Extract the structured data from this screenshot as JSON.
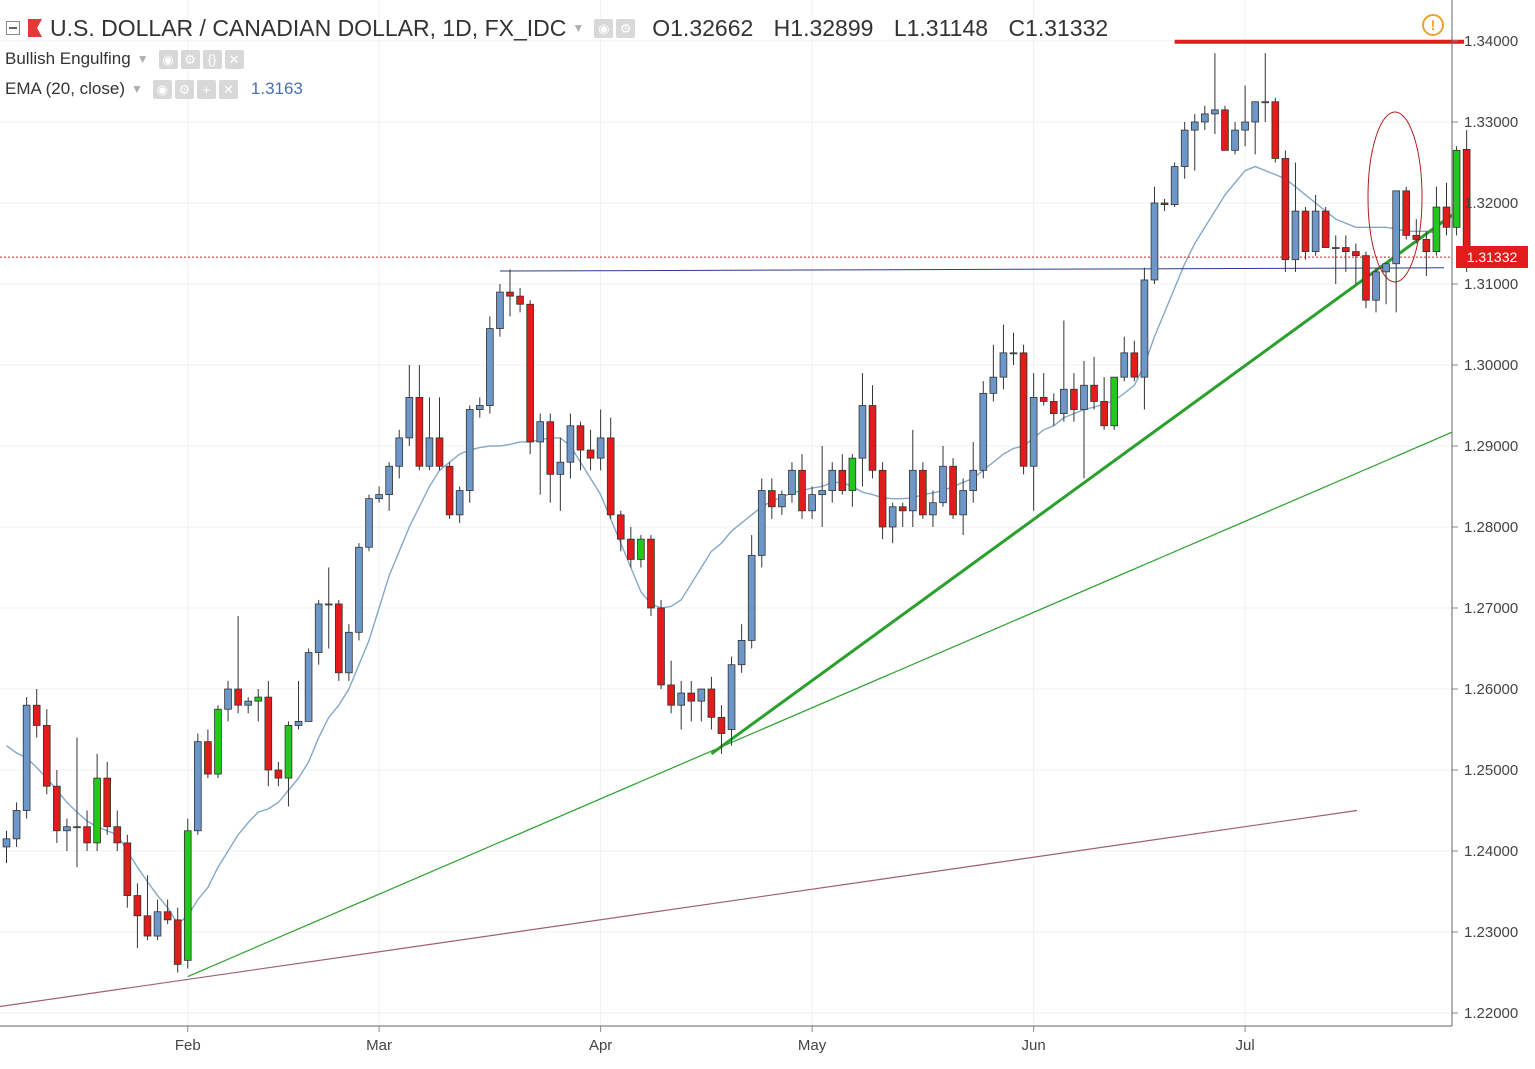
{
  "header": {
    "title": "U.S. DOLLAR / CANADIAN DOLLAR, 1D, FX_IDC",
    "open_label": "O1.32662",
    "high_label": "H1.32899",
    "low_label": "L1.31148",
    "close_label": "C1.31332"
  },
  "indicators": [
    {
      "name": "Bullish Engulfing",
      "value": ""
    },
    {
      "name": "EMA (20, close)",
      "value": "1.3163"
    }
  ],
  "last_price_label": "1.31332",
  "colors": {
    "up_body": "#6c97c8",
    "down_body": "#e21b1b",
    "pattern_green": "#22c81e",
    "ema_line": "#86a8c8",
    "trendline": "#2ca02c",
    "long_trendline": "#a06070",
    "resistance": "#e21b1b",
    "support": "#2b3a8f"
  },
  "chart_data": {
    "type": "candlestick",
    "title": "U.S. DOLLAR / CANADIAN DOLLAR, 1D, FX_IDC",
    "ylim": [
      1.22,
      1.34
    ],
    "y_ticks": [
      "1.22000",
      "1.23000",
      "1.24000",
      "1.25000",
      "1.26000",
      "1.27000",
      "1.28000",
      "1.29000",
      "1.30000",
      "1.31000",
      "1.32000",
      "1.33000",
      "1.34000"
    ],
    "x_labels": [
      {
        "label": "Feb",
        "index": 18
      },
      {
        "label": "Mar",
        "index": 37
      },
      {
        "label": "Apr",
        "index": 59
      },
      {
        "label": "May",
        "index": 80
      },
      {
        "label": "Jun",
        "index": 102
      },
      {
        "label": "Jul",
        "index": 123
      }
    ],
    "last_price": 1.31332,
    "candles": [
      {
        "o": 1.2405,
        "h": 1.2425,
        "l": 1.2385,
        "c": 1.2415
      },
      {
        "o": 1.2415,
        "h": 1.246,
        "l": 1.2405,
        "c": 1.245
      },
      {
        "o": 1.245,
        "h": 1.259,
        "l": 1.244,
        "c": 1.258
      },
      {
        "o": 1.258,
        "h": 1.26,
        "l": 1.254,
        "c": 1.2555
      },
      {
        "o": 1.2555,
        "h": 1.2575,
        "l": 1.247,
        "c": 1.248
      },
      {
        "o": 1.248,
        "h": 1.25,
        "l": 1.241,
        "c": 1.2425
      },
      {
        "o": 1.2425,
        "h": 1.244,
        "l": 1.24,
        "c": 1.243
      },
      {
        "o": 1.243,
        "h": 1.254,
        "l": 1.238,
        "c": 1.243
      },
      {
        "o": 1.243,
        "h": 1.245,
        "l": 1.24,
        "c": 1.241
      },
      {
        "o": 1.241,
        "h": 1.252,
        "l": 1.24,
        "c": 1.249,
        "g": 1
      },
      {
        "o": 1.249,
        "h": 1.251,
        "l": 1.242,
        "c": 1.243
      },
      {
        "o": 1.243,
        "h": 1.245,
        "l": 1.24,
        "c": 1.241
      },
      {
        "o": 1.241,
        "h": 1.242,
        "l": 1.233,
        "c": 1.2345
      },
      {
        "o": 1.2345,
        "h": 1.236,
        "l": 1.228,
        "c": 1.232
      },
      {
        "o": 1.232,
        "h": 1.237,
        "l": 1.229,
        "c": 1.2295
      },
      {
        "o": 1.2295,
        "h": 1.234,
        "l": 1.229,
        "c": 1.2325
      },
      {
        "o": 1.2325,
        "h": 1.234,
        "l": 1.231,
        "c": 1.2315
      },
      {
        "o": 1.2315,
        "h": 1.233,
        "l": 1.225,
        "c": 1.226
      },
      {
        "o": 1.2265,
        "h": 1.244,
        "l": 1.2255,
        "c": 1.2425,
        "g": 1
      },
      {
        "o": 1.2425,
        "h": 1.2545,
        "l": 1.242,
        "c": 1.2535
      },
      {
        "o": 1.2535,
        "h": 1.255,
        "l": 1.249,
        "c": 1.2495
      },
      {
        "o": 1.2495,
        "h": 1.258,
        "l": 1.249,
        "c": 1.2575,
        "g": 1
      },
      {
        "o": 1.2575,
        "h": 1.261,
        "l": 1.256,
        "c": 1.26
      },
      {
        "o": 1.26,
        "h": 1.269,
        "l": 1.257,
        "c": 1.258
      },
      {
        "o": 1.258,
        "h": 1.259,
        "l": 1.257,
        "c": 1.2585
      },
      {
        "o": 1.2585,
        "h": 1.26,
        "l": 1.256,
        "c": 1.259,
        "g": 1
      },
      {
        "o": 1.259,
        "h": 1.261,
        "l": 1.248,
        "c": 1.25
      },
      {
        "o": 1.25,
        "h": 1.251,
        "l": 1.248,
        "c": 1.249
      },
      {
        "o": 1.249,
        "h": 1.256,
        "l": 1.2455,
        "c": 1.2555,
        "g": 1
      },
      {
        "o": 1.2555,
        "h": 1.261,
        "l": 1.255,
        "c": 1.256
      },
      {
        "o": 1.256,
        "h": 1.265,
        "l": 1.256,
        "c": 1.2645
      },
      {
        "o": 1.2645,
        "h": 1.271,
        "l": 1.263,
        "c": 1.2705
      },
      {
        "o": 1.2705,
        "h": 1.275,
        "l": 1.265,
        "c": 1.2705
      },
      {
        "o": 1.2705,
        "h": 1.271,
        "l": 1.261,
        "c": 1.262
      },
      {
        "o": 1.262,
        "h": 1.268,
        "l": 1.261,
        "c": 1.267
      },
      {
        "o": 1.267,
        "h": 1.278,
        "l": 1.266,
        "c": 1.2775
      },
      {
        "o": 1.2775,
        "h": 1.284,
        "l": 1.277,
        "c": 1.2835
      },
      {
        "o": 1.2835,
        "h": 1.285,
        "l": 1.283,
        "c": 1.284
      },
      {
        "o": 1.284,
        "h": 1.288,
        "l": 1.282,
        "c": 1.2875
      },
      {
        "o": 1.2875,
        "h": 1.292,
        "l": 1.286,
        "c": 1.291
      },
      {
        "o": 1.291,
        "h": 1.3,
        "l": 1.29,
        "c": 1.296
      },
      {
        "o": 1.296,
        "h": 1.3,
        "l": 1.287,
        "c": 1.2875
      },
      {
        "o": 1.2875,
        "h": 1.296,
        "l": 1.287,
        "c": 1.291
      },
      {
        "o": 1.291,
        "h": 1.296,
        "l": 1.287,
        "c": 1.2875
      },
      {
        "o": 1.2875,
        "h": 1.288,
        "l": 1.281,
        "c": 1.2815
      },
      {
        "o": 1.2815,
        "h": 1.285,
        "l": 1.2805,
        "c": 1.2845
      },
      {
        "o": 1.2845,
        "h": 1.295,
        "l": 1.283,
        "c": 1.2945
      },
      {
        "o": 1.2945,
        "h": 1.296,
        "l": 1.2935,
        "c": 1.295
      },
      {
        "o": 1.295,
        "h": 1.306,
        "l": 1.294,
        "c": 1.3045
      },
      {
        "o": 1.3045,
        "h": 1.31,
        "l": 1.3035,
        "c": 1.309
      },
      {
        "o": 1.309,
        "h": 1.3118,
        "l": 1.306,
        "c": 1.3085
      },
      {
        "o": 1.3085,
        "h": 1.3095,
        "l": 1.3065,
        "c": 1.3075
      },
      {
        "o": 1.3075,
        "h": 1.308,
        "l": 1.289,
        "c": 1.2905
      },
      {
        "o": 1.2905,
        "h": 1.294,
        "l": 1.284,
        "c": 1.293
      },
      {
        "o": 1.293,
        "h": 1.294,
        "l": 1.283,
        "c": 1.2865
      },
      {
        "o": 1.2865,
        "h": 1.291,
        "l": 1.282,
        "c": 1.288
      },
      {
        "o": 1.288,
        "h": 1.294,
        "l": 1.286,
        "c": 1.2925
      },
      {
        "o": 1.2925,
        "h": 1.293,
        "l": 1.287,
        "c": 1.2895
      },
      {
        "o": 1.2895,
        "h": 1.292,
        "l": 1.287,
        "c": 1.2885
      },
      {
        "o": 1.2885,
        "h": 1.2945,
        "l": 1.287,
        "c": 1.291
      },
      {
        "o": 1.291,
        "h": 1.2935,
        "l": 1.281,
        "c": 1.2815
      },
      {
        "o": 1.2815,
        "h": 1.282,
        "l": 1.277,
        "c": 1.2785
      },
      {
        "o": 1.2785,
        "h": 1.28,
        "l": 1.275,
        "c": 1.276
      },
      {
        "o": 1.276,
        "h": 1.279,
        "l": 1.275,
        "c": 1.2785,
        "g": 1
      },
      {
        "o": 1.2785,
        "h": 1.279,
        "l": 1.269,
        "c": 1.27
      },
      {
        "o": 1.27,
        "h": 1.271,
        "l": 1.26,
        "c": 1.2605
      },
      {
        "o": 1.2605,
        "h": 1.2635,
        "l": 1.257,
        "c": 1.258
      },
      {
        "o": 1.258,
        "h": 1.261,
        "l": 1.255,
        "c": 1.2595
      },
      {
        "o": 1.2595,
        "h": 1.261,
        "l": 1.256,
        "c": 1.2585
      },
      {
        "o": 1.2585,
        "h": 1.26,
        "l": 1.256,
        "c": 1.26
      },
      {
        "o": 1.26,
        "h": 1.2615,
        "l": 1.255,
        "c": 1.2565
      },
      {
        "o": 1.2565,
        "h": 1.258,
        "l": 1.252,
        "c": 1.2545
      },
      {
        "o": 1.255,
        "h": 1.264,
        "l": 1.253,
        "c": 1.263
      },
      {
        "o": 1.263,
        "h": 1.268,
        "l": 1.262,
        "c": 1.266
      },
      {
        "o": 1.266,
        "h": 1.279,
        "l": 1.265,
        "c": 1.2765
      },
      {
        "o": 1.2765,
        "h": 1.286,
        "l": 1.275,
        "c": 1.2845
      },
      {
        "o": 1.2845,
        "h": 1.286,
        "l": 1.281,
        "c": 1.2825
      },
      {
        "o": 1.2825,
        "h": 1.2845,
        "l": 1.2815,
        "c": 1.284
      },
      {
        "o": 1.284,
        "h": 1.288,
        "l": 1.283,
        "c": 1.287
      },
      {
        "o": 1.287,
        "h": 1.289,
        "l": 1.281,
        "c": 1.282
      },
      {
        "o": 1.282,
        "h": 1.285,
        "l": 1.281,
        "c": 1.284
      },
      {
        "o": 1.284,
        "h": 1.29,
        "l": 1.28,
        "c": 1.2845
      },
      {
        "o": 1.2845,
        "h": 1.288,
        "l": 1.283,
        "c": 1.287
      },
      {
        "o": 1.287,
        "h": 1.289,
        "l": 1.284,
        "c": 1.2845
      },
      {
        "o": 1.2845,
        "h": 1.289,
        "l": 1.2825,
        "c": 1.2885,
        "g": 1
      },
      {
        "o": 1.2885,
        "h": 1.299,
        "l": 1.285,
        "c": 1.295
      },
      {
        "o": 1.295,
        "h": 1.2975,
        "l": 1.286,
        "c": 1.287
      },
      {
        "o": 1.287,
        "h": 1.288,
        "l": 1.2785,
        "c": 1.28
      },
      {
        "o": 1.28,
        "h": 1.283,
        "l": 1.278,
        "c": 1.2825
      },
      {
        "o": 1.2825,
        "h": 1.283,
        "l": 1.28,
        "c": 1.282
      },
      {
        "o": 1.282,
        "h": 1.292,
        "l": 1.28,
        "c": 1.287
      },
      {
        "o": 1.287,
        "h": 1.288,
        "l": 1.281,
        "c": 1.2815
      },
      {
        "o": 1.2815,
        "h": 1.2845,
        "l": 1.28,
        "c": 1.283
      },
      {
        "o": 1.283,
        "h": 1.29,
        "l": 1.2825,
        "c": 1.2875
      },
      {
        "o": 1.2875,
        "h": 1.2885,
        "l": 1.281,
        "c": 1.2815
      },
      {
        "o": 1.2815,
        "h": 1.286,
        "l": 1.279,
        "c": 1.2845
      },
      {
        "o": 1.2845,
        "h": 1.2905,
        "l": 1.283,
        "c": 1.287
      },
      {
        "o": 1.287,
        "h": 1.298,
        "l": 1.286,
        "c": 1.2965
      },
      {
        "o": 1.2965,
        "h": 1.3025,
        "l": 1.2955,
        "c": 1.2985
      },
      {
        "o": 1.2985,
        "h": 1.305,
        "l": 1.297,
        "c": 1.3015
      },
      {
        "o": 1.3015,
        "h": 1.304,
        "l": 1.3,
        "c": 1.3015
      },
      {
        "o": 1.3015,
        "h": 1.3025,
        "l": 1.2865,
        "c": 1.2875
      },
      {
        "o": 1.2875,
        "h": 1.299,
        "l": 1.282,
        "c": 1.296
      },
      {
        "o": 1.296,
        "h": 1.299,
        "l": 1.295,
        "c": 1.2955
      },
      {
        "o": 1.2955,
        "h": 1.2965,
        "l": 1.2925,
        "c": 1.294
      },
      {
        "o": 1.294,
        "h": 1.3055,
        "l": 1.293,
        "c": 1.297
      },
      {
        "o": 1.297,
        "h": 1.299,
        "l": 1.293,
        "c": 1.2945
      },
      {
        "o": 1.2945,
        "h": 1.3005,
        "l": 1.286,
        "c": 1.2975
      },
      {
        "o": 1.2975,
        "h": 1.301,
        "l": 1.2945,
        "c": 1.2955
      },
      {
        "o": 1.2955,
        "h": 1.2985,
        "l": 1.292,
        "c": 1.2925
      },
      {
        "o": 1.2925,
        "h": 1.2985,
        "l": 1.292,
        "c": 1.2985,
        "g": 1
      },
      {
        "o": 1.2985,
        "h": 1.3035,
        "l": 1.298,
        "c": 1.3015
      },
      {
        "o": 1.3015,
        "h": 1.303,
        "l": 1.298,
        "c": 1.2985
      },
      {
        "o": 1.2985,
        "h": 1.312,
        "l": 1.2945,
        "c": 1.3105
      },
      {
        "o": 1.3105,
        "h": 1.322,
        "l": 1.31,
        "c": 1.32
      },
      {
        "o": 1.32,
        "h": 1.3205,
        "l": 1.319,
        "c": 1.3198
      },
      {
        "o": 1.3198,
        "h": 1.325,
        "l": 1.3195,
        "c": 1.3245
      },
      {
        "o": 1.3245,
        "h": 1.33,
        "l": 1.323,
        "c": 1.329
      },
      {
        "o": 1.329,
        "h": 1.331,
        "l": 1.324,
        "c": 1.33
      },
      {
        "o": 1.33,
        "h": 1.332,
        "l": 1.329,
        "c": 1.331
      },
      {
        "o": 1.331,
        "h": 1.3385,
        "l": 1.3285,
        "c": 1.3315
      },
      {
        "o": 1.3315,
        "h": 1.332,
        "l": 1.3265,
        "c": 1.3265
      },
      {
        "o": 1.3265,
        "h": 1.33,
        "l": 1.326,
        "c": 1.329
      },
      {
        "o": 1.329,
        "h": 1.3345,
        "l": 1.327,
        "c": 1.33
      },
      {
        "o": 1.33,
        "h": 1.332,
        "l": 1.326,
        "c": 1.3325
      },
      {
        "o": 1.3325,
        "h": 1.3385,
        "l": 1.33,
        "c": 1.3325
      },
      {
        "o": 1.3325,
        "h": 1.333,
        "l": 1.325,
        "c": 1.3255
      },
      {
        "o": 1.3255,
        "h": 1.3265,
        "l": 1.3115,
        "c": 1.313
      },
      {
        "o": 1.313,
        "h": 1.325,
        "l": 1.3115,
        "c": 1.319
      },
      {
        "o": 1.319,
        "h": 1.3195,
        "l": 1.313,
        "c": 1.314
      },
      {
        "o": 1.314,
        "h": 1.321,
        "l": 1.3135,
        "c": 1.319
      },
      {
        "o": 1.319,
        "h": 1.3195,
        "l": 1.3145,
        "c": 1.3145
      },
      {
        "o": 1.3145,
        "h": 1.316,
        "l": 1.31,
        "c": 1.3145
      },
      {
        "o": 1.3145,
        "h": 1.316,
        "l": 1.3115,
        "c": 1.314
      },
      {
        "o": 1.314,
        "h": 1.315,
        "l": 1.31,
        "c": 1.3135
      },
      {
        "o": 1.3135,
        "h": 1.314,
        "l": 1.307,
        "c": 1.308
      },
      {
        "o": 1.308,
        "h": 1.312,
        "l": 1.3065,
        "c": 1.3115
      },
      {
        "o": 1.3115,
        "h": 1.3125,
        "l": 1.3075,
        "c": 1.3125
      },
      {
        "o": 1.3125,
        "h": 1.3215,
        "l": 1.3065,
        "c": 1.3215
      },
      {
        "o": 1.3215,
        "h": 1.322,
        "l": 1.3155,
        "c": 1.316
      },
      {
        "o": 1.316,
        "h": 1.318,
        "l": 1.315,
        "c": 1.3155
      },
      {
        "o": 1.3155,
        "h": 1.3165,
        "l": 1.311,
        "c": 1.314
      },
      {
        "o": 1.314,
        "h": 1.322,
        "l": 1.3135,
        "c": 1.3195,
        "g": 1
      },
      {
        "o": 1.3195,
        "h": 1.3225,
        "l": 1.316,
        "c": 1.317
      },
      {
        "o": 1.317,
        "h": 1.327,
        "l": 1.316,
        "c": 1.3265,
        "g": 1
      },
      {
        "o": 1.32662,
        "h": 1.32899,
        "l": 1.31148,
        "c": 1.31332
      }
    ],
    "ema_20": [
      1.253,
      1.2521,
      1.2515,
      1.2503,
      1.249,
      1.2475,
      1.246,
      1.2448,
      1.2437,
      1.243,
      1.2425,
      1.242,
      1.24,
      1.238,
      1.2362,
      1.2345,
      1.233,
      1.231,
      1.232,
      1.234,
      1.2355,
      1.238,
      1.24,
      1.242,
      1.2435,
      1.2448,
      1.2452,
      1.246,
      1.2475,
      1.249,
      1.251,
      1.254,
      1.2565,
      1.258,
      1.26,
      1.263,
      1.266,
      1.27,
      1.274,
      1.277,
      1.28,
      1.2825,
      1.285,
      1.287,
      1.288,
      1.289,
      1.2895,
      1.2898,
      1.29,
      1.29,
      1.2902,
      1.2905,
      1.2905,
      1.2908,
      1.291,
      1.291,
      1.29,
      1.288,
      1.286,
      1.284,
      1.281,
      1.278,
      1.275,
      1.272,
      1.2705,
      1.27,
      1.2702,
      1.271,
      1.273,
      1.275,
      1.277,
      1.278,
      1.2795,
      1.2805,
      1.2815,
      1.2825,
      1.2832,
      1.2837,
      1.2842,
      1.2845,
      1.2848,
      1.285,
      1.2855,
      1.2855,
      1.285,
      1.2843,
      1.284,
      1.2836,
      1.2835,
      1.2835,
      1.2836,
      1.284,
      1.2842,
      1.2845,
      1.285,
      1.2855,
      1.286,
      1.287,
      1.288,
      1.289,
      1.2897,
      1.29,
      1.291,
      1.292,
      1.2925,
      1.2935,
      1.294,
      1.2945,
      1.2948,
      1.2952,
      1.2956,
      1.2965,
      1.2975,
      1.3,
      1.3035,
      1.3065,
      1.3095,
      1.3125,
      1.315,
      1.317,
      1.319,
      1.321,
      1.3225,
      1.324,
      1.3245,
      1.324,
      1.3235,
      1.323,
      1.322,
      1.321,
      1.32,
      1.319,
      1.318,
      1.3175,
      1.317,
      1.317,
      1.317,
      1.317,
      1.3168,
      1.3165,
      1.3165,
      1.3165,
      1.3163
    ]
  }
}
